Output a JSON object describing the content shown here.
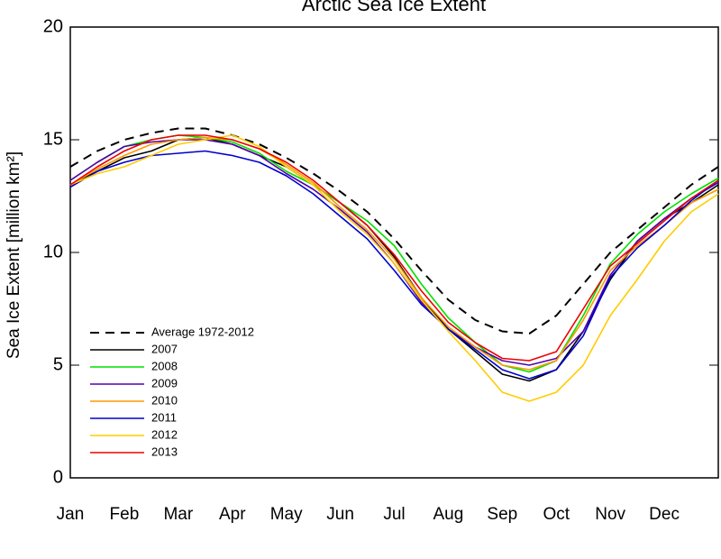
{
  "chart_data": {
    "type": "line",
    "title": "Arctic Sea Ice Extent",
    "y_label": "Sea Ice Extent [million km²]",
    "categories": [
      "Jan",
      null,
      "Feb",
      null,
      "Mar",
      null,
      "Apr",
      null,
      "May",
      null,
      "Jun",
      null,
      "Jul",
      null,
      "Aug",
      null,
      "Sep",
      null,
      "Oct",
      null,
      "Nov",
      null,
      "Dec",
      null,
      null
    ],
    "ylim": [
      0,
      20
    ],
    "yticks": [
      0,
      5,
      10,
      15,
      20
    ],
    "series": [
      {
        "name": "Average 1972-2012",
        "color": "#000000",
        "dashed": true,
        "values": [
          13.8,
          14.5,
          15.0,
          15.3,
          15.5,
          15.5,
          15.2,
          14.8,
          14.2,
          13.5,
          12.7,
          11.8,
          10.6,
          9.2,
          7.9,
          7.0,
          6.5,
          6.4,
          7.2,
          8.6,
          10.0,
          11.0,
          12.0,
          13.0,
          13.8
        ]
      },
      {
        "name": "2007",
        "color": "#000000",
        "values": [
          13.0,
          13.6,
          14.2,
          14.5,
          15.0,
          15.1,
          14.8,
          14.3,
          13.8,
          13.0,
          12.2,
          11.2,
          9.8,
          8.0,
          6.6,
          5.6,
          4.6,
          4.3,
          4.8,
          6.5,
          8.8,
          10.5,
          11.5,
          12.2,
          13.0
        ]
      },
      {
        "name": "2008",
        "color": "#00e000",
        "values": [
          13.2,
          14.0,
          14.7,
          15.0,
          15.2,
          15.1,
          14.9,
          14.4,
          13.6,
          13.0,
          12.2,
          11.4,
          10.3,
          8.6,
          7.1,
          6.0,
          5.0,
          4.7,
          5.2,
          7.2,
          9.5,
          10.8,
          11.8,
          12.6,
          13.3
        ]
      },
      {
        "name": "2009",
        "color": "#5500aa",
        "values": [
          13.2,
          14.0,
          14.7,
          14.9,
          15.0,
          15.0,
          14.8,
          14.3,
          13.5,
          12.8,
          11.9,
          10.9,
          9.5,
          7.8,
          6.6,
          5.8,
          5.2,
          5.0,
          5.3,
          6.5,
          9.0,
          10.5,
          11.5,
          12.4,
          13.1
        ]
      },
      {
        "name": "2010",
        "color": "#ff9900",
        "values": [
          13.0,
          13.7,
          14.3,
          14.8,
          15.0,
          15.1,
          15.0,
          14.6,
          13.9,
          13.1,
          12.0,
          11.0,
          9.7,
          8.0,
          6.7,
          5.8,
          5.0,
          4.8,
          5.2,
          7.0,
          9.2,
          10.3,
          11.2,
          12.2,
          12.8
        ]
      },
      {
        "name": "2011",
        "color": "#0000cc",
        "values": [
          12.9,
          13.6,
          14.0,
          14.3,
          14.4,
          14.5,
          14.3,
          14.0,
          13.4,
          12.6,
          11.6,
          10.6,
          9.2,
          7.7,
          6.6,
          5.7,
          4.8,
          4.4,
          4.8,
          6.3,
          8.9,
          10.2,
          11.2,
          12.3,
          13.2
        ]
      },
      {
        "name": "2012",
        "color": "#ffcc00",
        "values": [
          13.0,
          13.5,
          13.8,
          14.3,
          14.8,
          15.0,
          15.2,
          14.7,
          13.8,
          13.0,
          11.8,
          10.8,
          9.5,
          7.9,
          6.5,
          5.2,
          3.8,
          3.4,
          3.8,
          5.0,
          7.2,
          8.8,
          10.5,
          11.8,
          12.6
        ]
      },
      {
        "name": "2013",
        "color": "#ee0000",
        "values": [
          13.0,
          13.8,
          14.5,
          15.0,
          15.2,
          15.2,
          15.0,
          14.6,
          14.0,
          13.2,
          12.2,
          11.2,
          9.9,
          8.3,
          6.9,
          6.0,
          5.3,
          5.2,
          5.6,
          7.5,
          9.4,
          10.4,
          11.4,
          12.4,
          13.2
        ]
      }
    ]
  }
}
